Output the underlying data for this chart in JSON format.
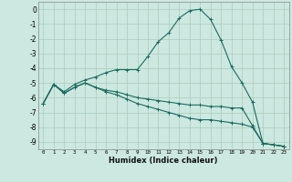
{
  "xlabel": "Humidex (Indice chaleur)",
  "bg_color": "#cce8e0",
  "grid_color": "#aaccbb",
  "line_color": "#1a6b5e",
  "line1": {
    "x": [
      0,
      1,
      2,
      3,
      4,
      5,
      6,
      7,
      8,
      9,
      10,
      11,
      12,
      13,
      14,
      15,
      16,
      17,
      18,
      19,
      20,
      21,
      22,
      23
    ],
    "y": [
      -6.4,
      -5.1,
      -5.6,
      -5.1,
      -4.8,
      -4.6,
      -4.3,
      -4.1,
      -4.1,
      -4.1,
      -3.2,
      -2.2,
      -1.6,
      -0.6,
      -0.1,
      0.0,
      -0.7,
      -2.1,
      -3.9,
      -5.0,
      -6.3,
      -9.1,
      -9.2,
      -9.3
    ]
  },
  "line2": {
    "x": [
      0,
      1,
      2,
      3,
      4,
      5,
      6,
      7,
      8,
      9,
      10,
      11,
      12,
      13,
      14,
      15,
      16,
      17,
      18,
      19,
      20,
      21,
      22,
      23
    ],
    "y": [
      -6.4,
      -5.1,
      -5.7,
      -5.3,
      -5.0,
      -5.3,
      -5.5,
      -5.6,
      -5.8,
      -6.0,
      -6.1,
      -6.2,
      -6.3,
      -6.4,
      -6.5,
      -6.5,
      -6.6,
      -6.6,
      -6.7,
      -6.7,
      -7.9,
      -9.1,
      -9.2,
      -9.3
    ]
  },
  "line3": {
    "x": [
      0,
      1,
      2,
      3,
      4,
      5,
      6,
      7,
      8,
      9,
      10,
      11,
      12,
      13,
      14,
      15,
      16,
      17,
      18,
      19,
      20,
      21,
      22,
      23
    ],
    "y": [
      -6.4,
      -5.1,
      -5.7,
      -5.3,
      -5.0,
      -5.3,
      -5.6,
      -5.8,
      -6.1,
      -6.4,
      -6.6,
      -6.8,
      -7.0,
      -7.2,
      -7.4,
      -7.5,
      -7.5,
      -7.6,
      -7.7,
      -7.8,
      -8.0,
      -9.1,
      -9.2,
      -9.3
    ]
  },
  "xlim": [
    -0.5,
    23.5
  ],
  "ylim": [
    -9.5,
    0.5
  ],
  "xticks": [
    0,
    1,
    2,
    3,
    4,
    5,
    6,
    7,
    8,
    9,
    10,
    11,
    12,
    13,
    14,
    15,
    16,
    17,
    18,
    19,
    20,
    21,
    22,
    23
  ],
  "yticks": [
    0,
    -1,
    -2,
    -3,
    -4,
    -5,
    -6,
    -7,
    -8,
    -9
  ]
}
